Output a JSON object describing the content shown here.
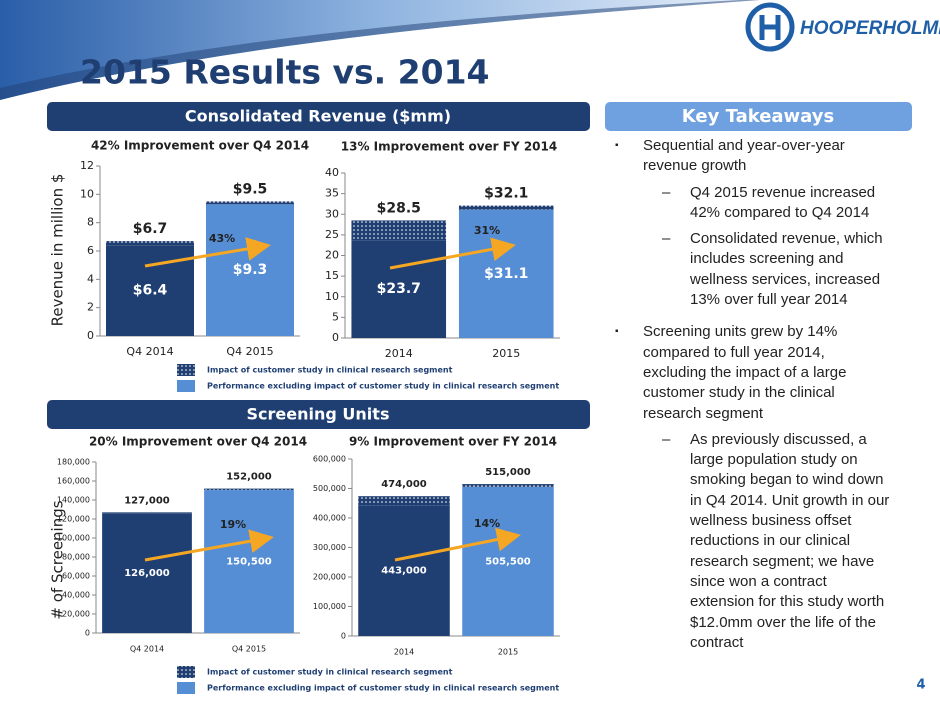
{
  "slide": {
    "title": "2015 Results vs.  2014",
    "logo": "HOOPERHOLMES",
    "page_number": "4",
    "revenue_header": "Consolidated Revenue ($mm)",
    "takeaways_header": "Key Takeaways",
    "screening_header": "Screening Units",
    "takeaways": [
      {
        "text": "Sequential and year-over-year revenue growth",
        "sub": [
          "Q4 2015 revenue increased 42% compared to Q4 2014",
          "Consolidated revenue, which includes screening and wellness services, increased 13% over full year 2014"
        ]
      },
      {
        "text": "Screening units grew by 14% compared to full year 2014, excluding the impact of a large customer study in the clinical research segment",
        "sub": [
          "As previously discussed, a large population study on smoking began to wind down in Q4 2014. Unit growth in our wellness business offset reductions in our clinical research segment;  we have since won a contract extension for this study worth $12.0mm over the life of the contract"
        ]
      }
    ]
  },
  "chart_data": [
    {
      "type": "stacked_bar",
      "title": "42% Improvement over Q4 2014",
      "y_label": "Revenue in million $",
      "categories": [
        "Q4 2014",
        "Q4 2015"
      ],
      "bar_colors": [
        "#1f3f73",
        "#558ed5"
      ],
      "series": [
        {
          "name": "Performance excluding impact of customer study in clinical research segment",
          "color": "#558ed5",
          "values": [
            6.4,
            9.3
          ],
          "value_labels": [
            "$6.4",
            "$9.3"
          ]
        },
        {
          "name": "Impact of customer study in clinical research segment",
          "color": "#1f3f73",
          "pattern": "dots",
          "values": [
            0.3,
            0.2
          ]
        }
      ],
      "totals": [
        6.7,
        9.5
      ],
      "total_labels": [
        "$6.7",
        "$9.5"
      ],
      "annotation": "43%",
      "ylim": [
        0,
        12
      ],
      "yticks": [
        0,
        2,
        4,
        6,
        8,
        10,
        12
      ]
    },
    {
      "type": "stacked_bar",
      "title": "13% Improvement over FY 2014",
      "categories": [
        "2014",
        "2015"
      ],
      "bar_colors": [
        "#1f3f73",
        "#558ed5"
      ],
      "series": [
        {
          "name": "Performance excluding impact of customer study in clinical research segment",
          "color": "#558ed5",
          "values": [
            23.7,
            31.1
          ],
          "value_labels": [
            "$23.7",
            "$31.1"
          ]
        },
        {
          "name": "Impact of customer study in clinical research segment",
          "color": "#1f3f73",
          "pattern": "dots",
          "values": [
            4.8,
            1.0
          ]
        }
      ],
      "totals": [
        28.5,
        32.1
      ],
      "total_labels": [
        "$28.5",
        "$32.1"
      ],
      "annotation": "31%",
      "ylim": [
        0,
        40
      ],
      "yticks": [
        0,
        5,
        10,
        15,
        20,
        25,
        30,
        35,
        40
      ]
    },
    {
      "type": "stacked_bar",
      "title": "20% Improvement over Q4 2014",
      "y_label": "# of Screenings",
      "categories": [
        "Q4 2014",
        "Q4 2015"
      ],
      "bar_colors": [
        "#1f3f73",
        "#558ed5"
      ],
      "series": [
        {
          "name": "Performance excluding impact of customer study in clinical research segment",
          "color": "#558ed5",
          "values": [
            126000,
            150500
          ],
          "value_labels": [
            "126,000",
            "150,500"
          ]
        },
        {
          "name": "Impact of customer study in clinical research segment",
          "color": "#1f3f73",
          "pattern": "dots",
          "values": [
            1000,
            1500
          ]
        }
      ],
      "totals": [
        127000,
        152000
      ],
      "total_labels": [
        "127,000",
        "152,000"
      ],
      "annotation": "19%",
      "ylim": [
        0,
        180000
      ],
      "yticks": [
        0,
        {
          "value": 20000,
          "label": "20,000"
        },
        {
          "value": 40000,
          "label": "40,000"
        },
        {
          "value": 60000,
          "label": "60,000"
        },
        {
          "value": 80000,
          "label": "80,000"
        },
        {
          "value": 100000,
          "label": "100,000"
        },
        {
          "value": 120000,
          "label": "120,000"
        },
        {
          "value": 140000,
          "label": "140,000"
        },
        {
          "value": 160000,
          "label": "160,000"
        },
        {
          "value": 180000,
          "label": "180,000"
        }
      ]
    },
    {
      "type": "stacked_bar",
      "title": "9% Improvement over FY 2014",
      "categories": [
        "2014",
        "2015"
      ],
      "bar_colors": [
        "#1f3f73",
        "#558ed5"
      ],
      "series": [
        {
          "name": "Performance excluding impact of customer study in clinical research segment",
          "color": "#558ed5",
          "values": [
            443000,
            505500
          ],
          "value_labels": [
            "443,000",
            "505,500"
          ]
        },
        {
          "name": "Impact of customer study in clinical research segment",
          "color": "#1f3f73",
          "pattern": "dots",
          "values": [
            31000,
            9500
          ]
        }
      ],
      "totals": [
        474000,
        515000
      ],
      "total_labels": [
        "474,000",
        "515,000"
      ],
      "annotation": "14%",
      "ylim": [
        0,
        600000
      ],
      "yticks": [
        0,
        {
          "value": 100000,
          "label": "100,000"
        },
        {
          "value": 200000,
          "label": "200,000"
        },
        {
          "value": 300000,
          "label": "300,000"
        },
        {
          "value": 400000,
          "label": "400,000"
        },
        {
          "value": 500000,
          "label": "500,000"
        },
        {
          "value": 600000,
          "label": "600,000"
        }
      ]
    }
  ]
}
